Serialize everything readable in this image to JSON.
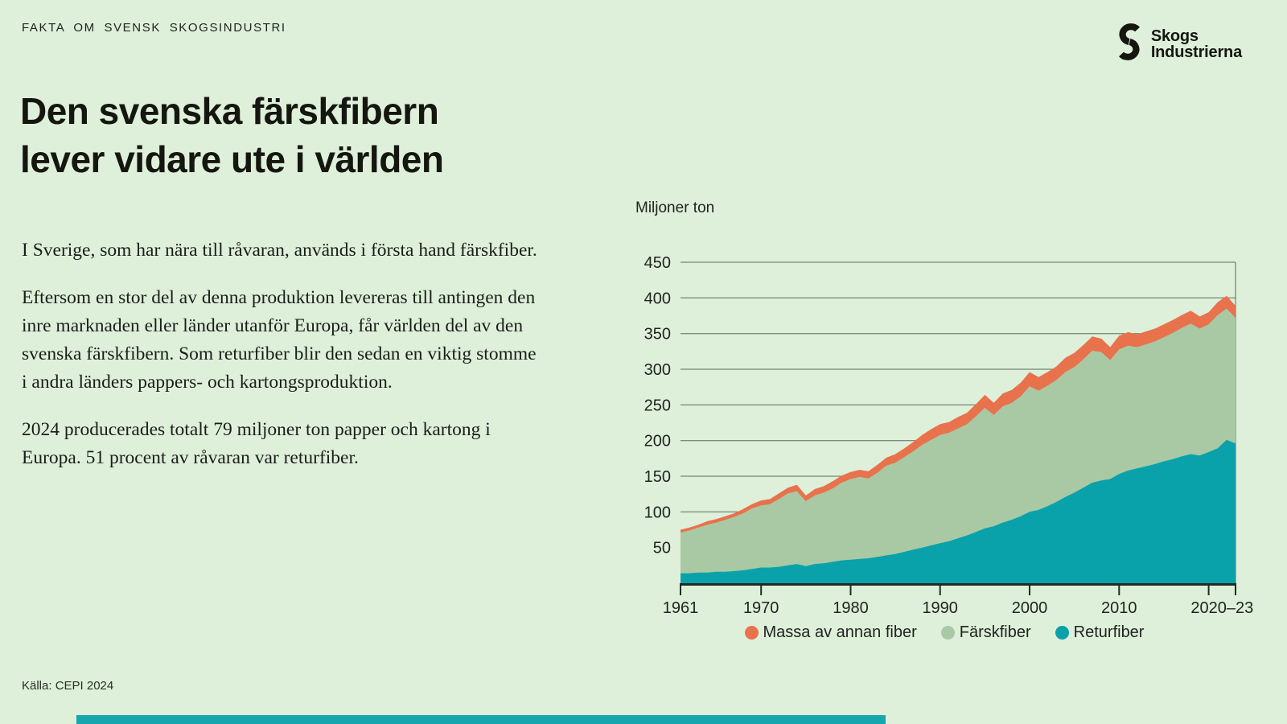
{
  "page": {
    "eyebrow": "FAKTA OM SVENSK SKOGSINDUSTRI",
    "source": "Källa: CEPI 2024"
  },
  "logo": {
    "line1": "Skogs",
    "line2": "Industrierna"
  },
  "title": {
    "line1": "Den svenska färskfibern",
    "line2": "lever vidare ute i världen"
  },
  "paragraphs": [
    "I Sverige, som har nära till råvaran, används i första hand färskfiber.",
    "Eftersom en stor del av denna produktion levereras till antingen den inre marknaden eller länder utanför Europa, får världen del av den svenska färskfibern. Som returfiber blir den sedan en viktig stomme i andra länders pappers- och kartongsproduktion.",
    "2024 producerades totalt 79 miljoner ton papper och kartong i Europa. 51 procent av råvaran var returfiber."
  ],
  "chart_data": {
    "type": "area",
    "stacked": true,
    "unit_label": "Miljoner ton",
    "ylabel": "Miljoner ton",
    "ylim": [
      0,
      450
    ],
    "ytick_interval": 50,
    "grid": true,
    "legend_position": "bottom",
    "xtick_years": [
      1961,
      1970,
      1980,
      1990,
      2000,
      2010,
      2020,
      2023
    ],
    "xtick_labels": [
      "1961",
      "1970",
      "1980",
      "1990",
      "2000",
      "2010",
      "2020–23"
    ],
    "years": [
      1961,
      1962,
      1963,
      1964,
      1965,
      1966,
      1967,
      1968,
      1969,
      1970,
      1971,
      1972,
      1973,
      1974,
      1975,
      1976,
      1977,
      1978,
      1979,
      1980,
      1981,
      1982,
      1983,
      1984,
      1985,
      1986,
      1987,
      1988,
      1989,
      1990,
      1991,
      1992,
      1993,
      1994,
      1995,
      1996,
      1997,
      1998,
      1999,
      2000,
      2001,
      2002,
      2003,
      2004,
      2005,
      2006,
      2007,
      2008,
      2009,
      2010,
      2011,
      2012,
      2013,
      2014,
      2015,
      2016,
      2017,
      2018,
      2019,
      2020,
      2021,
      2022,
      2023
    ],
    "series": [
      {
        "name": "Massa av annan fiber",
        "color": "#e8724c",
        "values": [
          4,
          4,
          4,
          5,
          5,
          5,
          5,
          6,
          6,
          7,
          7,
          8,
          8,
          9,
          8,
          9,
          9,
          10,
          10,
          10,
          10,
          10,
          11,
          11,
          12,
          12,
          13,
          14,
          15,
          15,
          15,
          16,
          16,
          17,
          18,
          17,
          18,
          18,
          19,
          20,
          19,
          19,
          19,
          20,
          20,
          20,
          20,
          19,
          18,
          19,
          19,
          18,
          18,
          18,
          18,
          18,
          18,
          18,
          17,
          17,
          18,
          18,
          17
        ]
      },
      {
        "name": "Färskfiber",
        "color": "#a9c9a4",
        "values": [
          57,
          60,
          63,
          67,
          69,
          73,
          76,
          80,
          85,
          87,
          89,
          95,
          101,
          102,
          91,
          96,
          99,
          103,
          109,
          113,
          115,
          112,
          118,
          126,
          128,
          133,
          138,
          144,
          148,
          152,
          152,
          154,
          156,
          162,
          169,
          156,
          163,
          164,
          168,
          176,
          167,
          169,
          171,
          175,
          176,
          180,
          185,
          180,
          167,
          175,
          175,
          170,
          171,
          172,
          174,
          177,
          180,
          183,
          178,
          179,
          187,
          184,
          176
        ]
      },
      {
        "name": "Returfiber",
        "color": "#0aa2aa",
        "values": [
          14,
          14,
          15,
          15,
          16,
          16,
          17,
          18,
          20,
          22,
          22,
          23,
          25,
          27,
          24,
          27,
          28,
          30,
          32,
          33,
          34,
          35,
          37,
          39,
          41,
          44,
          47,
          50,
          53,
          56,
          59,
          63,
          67,
          72,
          77,
          80,
          85,
          89,
          94,
          100,
          103,
          108,
          114,
          121,
          127,
          134,
          141,
          144,
          146,
          153,
          158,
          161,
          164,
          167,
          171,
          174,
          178,
          181,
          179,
          184,
          189,
          201,
          196
        ]
      }
    ]
  },
  "colors": {
    "background": "#def0da",
    "text": "#1d1f1c",
    "gridline": "#5b6a5d",
    "baseline": "#222a22",
    "accent_bar": "#16a6ad"
  }
}
